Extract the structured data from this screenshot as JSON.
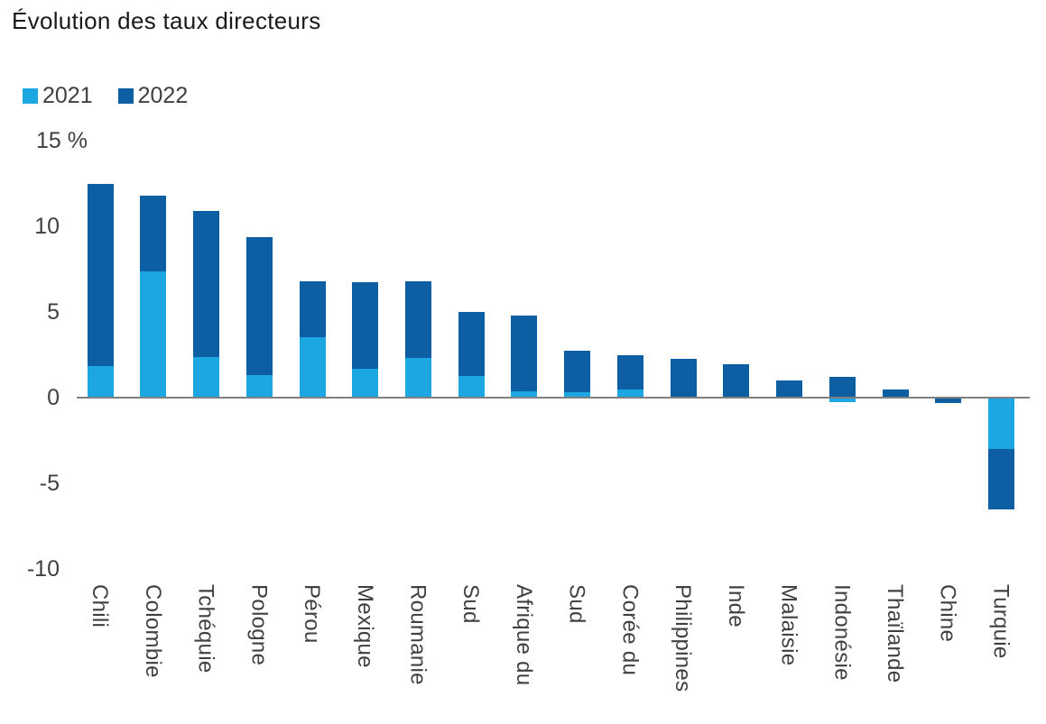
{
  "chart_data": {
    "type": "bar",
    "stacked": true,
    "title": "Évolution des taux directeurs",
    "unit": "%",
    "grid": false,
    "legend_position": "top-left",
    "categories": [
      "Chili",
      "Colombie",
      "Tchéquie",
      "Pologne",
      "Pérou",
      "Mexique",
      "Roumanie",
      "Sud",
      "Afrique du",
      "Sud",
      "Corée du",
      "Philippines",
      "Inde",
      "Malaisie",
      "Indonésie",
      "Thaïlande",
      "Chine",
      "Turquie"
    ],
    "series": [
      {
        "name": "2021",
        "color": "#1da7e2",
        "values": [
          1.85,
          7.35,
          2.35,
          1.3,
          3.55,
          1.7,
          2.3,
          1.25,
          0.35,
          0.3,
          0.5,
          0,
          0,
          0,
          -0.25,
          0,
          0,
          -3.0
        ]
      },
      {
        "name": "2022",
        "color": "#0d5ea2",
        "values": [
          10.6,
          4.45,
          8.55,
          8.05,
          3.25,
          5.05,
          4.5,
          3.75,
          4.45,
          2.45,
          2.0,
          2.25,
          1.95,
          1.0,
          1.2,
          0.5,
          -0.3,
          -3.5
        ]
      }
    ],
    "y_axis": {
      "range": [
        -10,
        15
      ],
      "ticks": [
        {
          "label": "15 %",
          "value": 15
        },
        {
          "label": "10",
          "value": 10
        },
        {
          "label": "5",
          "value": 5
        },
        {
          "label": "0",
          "value": 0
        },
        {
          "label": "-5",
          "value": -5
        },
        {
          "label": "-10",
          "value": -10
        }
      ]
    },
    "axis_color": "#7f7f7f"
  }
}
